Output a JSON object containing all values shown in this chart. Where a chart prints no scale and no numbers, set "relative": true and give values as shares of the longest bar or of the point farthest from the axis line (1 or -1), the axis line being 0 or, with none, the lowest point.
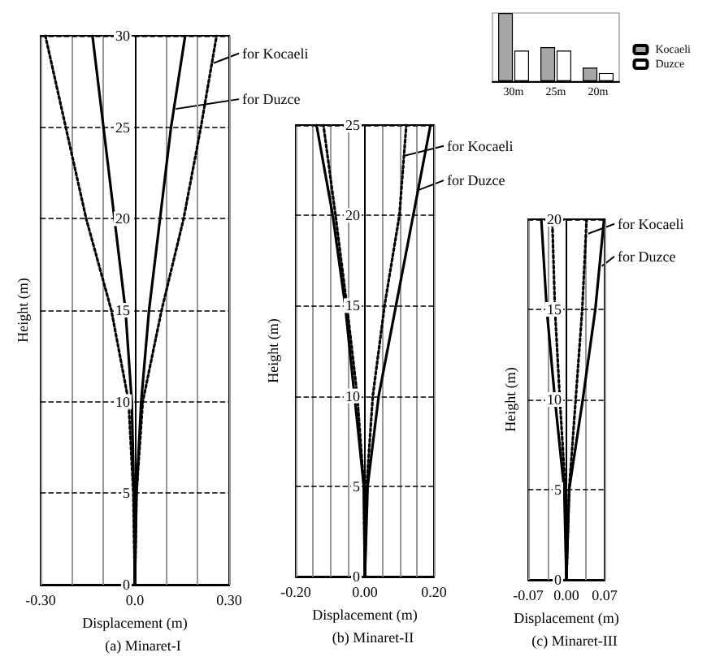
{
  "chart_data": [
    {
      "type": "line",
      "title": "(a) Minaret-I",
      "xlabel": "Displacement (m)",
      "ylabel": "Height (m)",
      "xlim": [
        -0.3,
        0.3
      ],
      "ylim": [
        0,
        30
      ],
      "xticks": [
        {
          "value": -0.3,
          "label": "-0.30"
        },
        {
          "value": -0.2,
          "label": null
        },
        {
          "value": -0.1,
          "label": null
        },
        {
          "value": 0,
          "label": "0.0"
        },
        {
          "value": 0.1,
          "label": null
        },
        {
          "value": 0.2,
          "label": null
        },
        {
          "value": 0.3,
          "label": "0.30"
        }
      ],
      "yticks": [
        0,
        5,
        10,
        15,
        20,
        25,
        30
      ],
      "grid": true,
      "series": [
        {
          "color": "#000000",
          "line_style": "dotted",
          "x": [
            0,
            0.005,
            0.025,
            0.085,
            0.155,
            0.21,
            0.26
          ],
          "values": [
            0,
            5,
            10,
            15,
            20,
            25,
            30
          ]
        },
        {
          "color": "#000000",
          "line_style": "dotted",
          "x": [
            0,
            -0.005,
            -0.02,
            -0.075,
            -0.155,
            -0.22,
            -0.285
          ],
          "values": [
            0,
            5,
            10,
            15,
            20,
            25,
            30
          ]
        },
        {
          "color": "#000000",
          "line_style": "solid",
          "x": [
            0,
            0.005,
            0.02,
            0.045,
            0.08,
            0.115,
            0.16
          ],
          "values": [
            0,
            5,
            10,
            15,
            20,
            25,
            30
          ]
        },
        {
          "color": "#000000",
          "line_style": "solid",
          "x": [
            0,
            -0.003,
            -0.01,
            -0.03,
            -0.065,
            -0.1,
            -0.135
          ],
          "values": [
            0,
            5,
            10,
            15,
            20,
            25,
            30
          ]
        }
      ],
      "annotations": [
        {
          "text": "for Kocaeli",
          "x": 0.245,
          "y": 28.5
        },
        {
          "text": "for Duzce",
          "x": 0.125,
          "y": 26
        }
      ]
    },
    {
      "type": "line",
      "title": "(b) Minaret-II",
      "xlabel": "Displacement (m)",
      "ylabel": "Height (m)",
      "xlim": [
        -0.2,
        0.2
      ],
      "ylim": [
        0,
        25
      ],
      "xticks": [
        {
          "value": -0.2,
          "label": "-0.20"
        },
        {
          "value": -0.15,
          "label": null
        },
        {
          "value": -0.1,
          "label": null
        },
        {
          "value": -0.05,
          "label": null
        },
        {
          "value": 0,
          "label": "0.00"
        },
        {
          "value": 0.05,
          "label": null
        },
        {
          "value": 0.1,
          "label": null
        },
        {
          "value": 0.15,
          "label": null
        },
        {
          "value": 0.2,
          "label": "0.20"
        }
      ],
      "yticks": [
        0,
        5,
        10,
        15,
        20,
        25
      ],
      "grid": true,
      "series": [
        {
          "color": "#000000",
          "line_style": "dotted",
          "x": [
            0,
            0.005,
            0.023,
            0.057,
            0.1,
            0.12
          ],
          "values": [
            0,
            5,
            10,
            15,
            20,
            25
          ]
        },
        {
          "color": "#000000",
          "line_style": "dotted",
          "x": [
            0,
            -0.003,
            -0.022,
            -0.052,
            -0.085,
            -0.12
          ],
          "values": [
            0,
            5,
            10,
            15,
            20,
            25
          ]
        },
        {
          "color": "#000000",
          "line_style": "solid",
          "x": [
            0,
            0.008,
            0.04,
            0.09,
            0.14,
            0.19
          ],
          "values": [
            0,
            5,
            10,
            15,
            20,
            25
          ]
        },
        {
          "color": "#000000",
          "line_style": "solid",
          "x": [
            0,
            -0.003,
            -0.03,
            -0.057,
            -0.093,
            -0.14
          ],
          "values": [
            0,
            5,
            10,
            15,
            20,
            25
          ]
        }
      ],
      "annotations": [
        {
          "text": "for Kocaeli",
          "x": 0.11,
          "y": 23.3
        },
        {
          "text": "for Duzce",
          "x": 0.15,
          "y": 21.4
        }
      ]
    },
    {
      "type": "line",
      "title": "(c) Minaret-III",
      "xlabel": "Displacement (m)",
      "ylabel": "Height (m)",
      "xlim": [
        -0.07,
        0.07
      ],
      "ylim": [
        0,
        20
      ],
      "xticks": [
        {
          "value": -0.07,
          "label": "-0.07"
        },
        {
          "value": -0.035,
          "label": null
        },
        {
          "value": 0,
          "label": "0.00"
        },
        {
          "value": 0.035,
          "label": null
        },
        {
          "value": 0.07,
          "label": "0.07"
        }
      ],
      "yticks": [
        0,
        5,
        10,
        15,
        20
      ],
      "grid": true,
      "series": [
        {
          "color": "#000000",
          "line_style": "dotted",
          "x": [
            0,
            0.005,
            0.017,
            0.029,
            0.037
          ],
          "values": [
            0,
            5,
            10,
            15,
            20
          ]
        },
        {
          "color": "#000000",
          "line_style": "dotted",
          "x": [
            0,
            -0.002,
            -0.012,
            -0.021,
            -0.026
          ],
          "values": [
            0,
            5,
            10,
            15,
            20
          ]
        },
        {
          "color": "#000000",
          "line_style": "solid",
          "x": [
            0,
            0.005,
            0.03,
            0.053,
            0.069
          ],
          "values": [
            0,
            5,
            10,
            15,
            20
          ]
        },
        {
          "color": "#000000",
          "line_style": "solid",
          "x": [
            0,
            -0.004,
            -0.021,
            -0.036,
            -0.046
          ],
          "values": [
            0,
            5,
            10,
            15,
            20
          ]
        }
      ],
      "annotations": [
        {
          "text": "for Kocaeli",
          "x": 0.037,
          "y": 19.2
        },
        {
          "text": "for Duzce",
          "x": 0.062,
          "y": 17.4
        }
      ]
    },
    {
      "type": "bar",
      "relative": true,
      "categories": [
        "30m",
        "25m",
        "20m"
      ],
      "legend": "right",
      "series": [
        {
          "name": "Kocaeli",
          "color": "#a6a6a6",
          "values": [
            1,
            0.5,
            0.2
          ]
        },
        {
          "name": "Duzce",
          "color": "#ffffff",
          "values": [
            0.45,
            0.45,
            0.12
          ]
        }
      ]
    }
  ]
}
